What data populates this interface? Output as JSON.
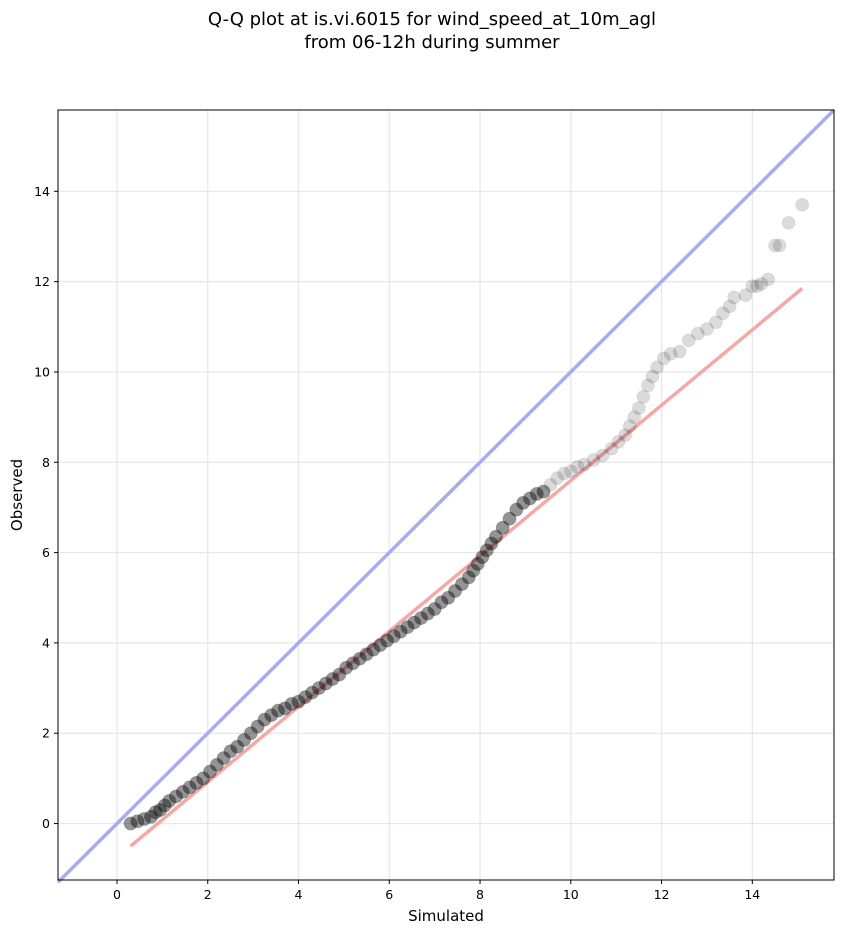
{
  "chart_data": {
    "type": "scatter",
    "title_line1": "Q-Q plot at is.vi.6015 for wind_speed_at_10m_agl",
    "title_line2": "from 06-12h during summer",
    "xlabel": "Simulated",
    "ylabel": "Observed",
    "xlim": [
      -1.3,
      15.8
    ],
    "ylim": [
      -1.25,
      15.8
    ],
    "xticks": [
      0,
      2,
      4,
      6,
      8,
      10,
      12,
      14
    ],
    "yticks": [
      0,
      2,
      4,
      6,
      8,
      10,
      12,
      14
    ],
    "xtick_labels": [
      "0",
      "2",
      "4",
      "6",
      "8",
      "10",
      "12",
      "14"
    ],
    "ytick_labels": [
      "0",
      "2",
      "4",
      "6",
      "8",
      "10",
      "12",
      "14"
    ],
    "grid": true,
    "point_color": "#000000",
    "identity_line_color": "#aaaaf0",
    "fit_line_color": "#f4a9a9",
    "fit_line": {
      "x": [
        0.3,
        15.1
      ],
      "y": [
        -0.5,
        11.85
      ]
    },
    "identity_line": {
      "x": [
        -1.3,
        15.8
      ],
      "y": [
        -1.3,
        15.8
      ]
    },
    "points": {
      "x": [
        0.3,
        0.45,
        0.6,
        0.75,
        0.85,
        0.95,
        1.05,
        1.15,
        1.3,
        1.45,
        1.6,
        1.75,
        1.9,
        2.05,
        2.2,
        2.35,
        2.5,
        2.65,
        2.8,
        2.95,
        3.1,
        3.25,
        3.4,
        3.55,
        3.7,
        3.85,
        4.0,
        4.15,
        4.3,
        4.45,
        4.6,
        4.75,
        4.9,
        5.05,
        5.2,
        5.35,
        5.5,
        5.65,
        5.8,
        5.95,
        6.1,
        6.25,
        6.4,
        6.55,
        6.7,
        6.85,
        7.0,
        7.15,
        7.3,
        7.45,
        7.6,
        7.75,
        7.85,
        7.95,
        8.05,
        8.15,
        8.25,
        8.35,
        8.5,
        8.65,
        8.8,
        8.95,
        9.1,
        9.25,
        9.4,
        9.55,
        9.7,
        9.85,
        10.0,
        10.15,
        10.3,
        10.5,
        10.7,
        10.9,
        11.05,
        11.2,
        11.3,
        11.4,
        11.5,
        11.6,
        11.7,
        11.8,
        11.9,
        12.05,
        12.2,
        12.4,
        12.6,
        12.8,
        13.0,
        13.2,
        13.35,
        13.5,
        13.6,
        13.85,
        14.0,
        14.1,
        14.2,
        14.35,
        14.5,
        14.6,
        14.8,
        15.1
      ],
      "y": [
        0.0,
        0.05,
        0.1,
        0.15,
        0.25,
        0.3,
        0.4,
        0.5,
        0.6,
        0.7,
        0.8,
        0.9,
        1.0,
        1.15,
        1.3,
        1.45,
        1.6,
        1.7,
        1.85,
        2.0,
        2.15,
        2.3,
        2.4,
        2.5,
        2.55,
        2.65,
        2.7,
        2.8,
        2.9,
        3.0,
        3.1,
        3.2,
        3.3,
        3.45,
        3.55,
        3.65,
        3.75,
        3.85,
        3.95,
        4.05,
        4.15,
        4.25,
        4.35,
        4.45,
        4.55,
        4.65,
        4.75,
        4.9,
        5.0,
        5.15,
        5.3,
        5.45,
        5.6,
        5.75,
        5.9,
        6.05,
        6.2,
        6.35,
        6.55,
        6.75,
        6.95,
        7.1,
        7.2,
        7.3,
        7.35,
        7.5,
        7.65,
        7.75,
        7.8,
        7.9,
        7.95,
        8.05,
        8.15,
        8.3,
        8.45,
        8.6,
        8.8,
        9.0,
        9.2,
        9.45,
        9.7,
        9.9,
        10.1,
        10.3,
        10.4,
        10.45,
        10.7,
        10.85,
        10.95,
        11.1,
        11.3,
        11.45,
        11.65,
        11.7,
        11.9,
        11.9,
        11.95,
        12.05,
        12.8,
        12.8,
        13.3,
        13.7
      ]
    }
  }
}
